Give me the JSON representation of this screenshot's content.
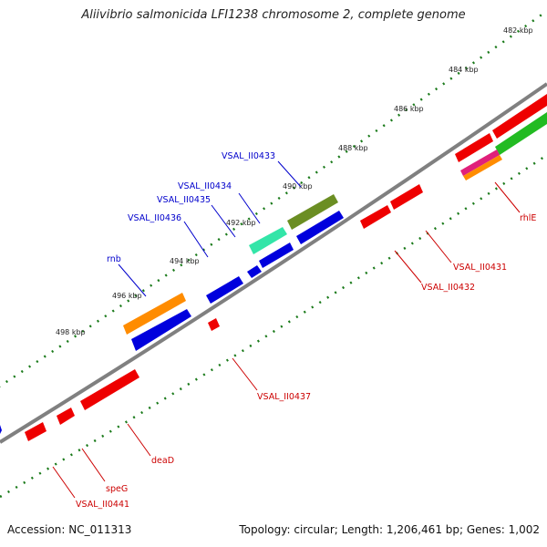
{
  "title": "Aliivibrio salmonicida LFI1238 chromosome 2, complete genome",
  "footer": {
    "accession": "Accession: NC_011313",
    "summary": "Topology: circular; Length: 1,206,461 bp; Genes: 1,002"
  },
  "ruler_ticks": [
    "482 kbp",
    "484 kbp",
    "486 kbp",
    "488 kbp",
    "490 kbp",
    "492 kbp",
    "494 kbp",
    "496 kbp",
    "498 kbp"
  ],
  "gene_labels": {
    "blue": [
      "VSAL_II0433",
      "VSAL_II0434",
      "VSAL_II0435",
      "VSAL_II0436",
      "rnb"
    ],
    "red": [
      "rhlE",
      "VSAL_II0431",
      "VSAL_II0432",
      "VSAL_II0437",
      "deaD",
      "speG",
      "VSAL_II0441"
    ]
  },
  "colors": {
    "forward_gene": "#0000dd",
    "reverse_gene": "#ee0000",
    "backbone": "#808080",
    "tick": "#1a7a1a"
  }
}
